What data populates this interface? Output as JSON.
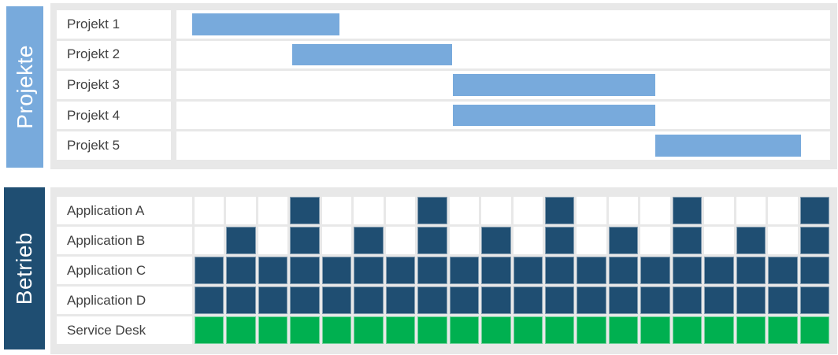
{
  "projects_section": {
    "sidebar_label": "Projekte",
    "rows": [
      {
        "label": "Projekt 1",
        "bar_left_pct": 2.4,
        "bar_width_pct": 22.5
      },
      {
        "label": "Projekt 2",
        "bar_left_pct": 17.7,
        "bar_width_pct": 24.5
      },
      {
        "label": "Projekt 3",
        "bar_left_pct": 42.3,
        "bar_width_pct": 31.0
      },
      {
        "label": "Projekt 4",
        "bar_left_pct": 42.3,
        "bar_width_pct": 31.0
      },
      {
        "label": "Projekt 5",
        "bar_left_pct": 73.3,
        "bar_width_pct": 22.3
      }
    ]
  },
  "operations_section": {
    "sidebar_label": "Betrieb",
    "columns": 20,
    "rows": [
      {
        "label": "Application A",
        "cell_color_key": "navy",
        "cells": [
          0,
          0,
          0,
          1,
          0,
          0,
          0,
          1,
          0,
          0,
          0,
          1,
          0,
          0,
          0,
          1,
          0,
          0,
          0,
          1
        ]
      },
      {
        "label": "Application B",
        "cell_color_key": "navy",
        "cells": [
          0,
          1,
          0,
          1,
          0,
          1,
          0,
          1,
          0,
          1,
          0,
          1,
          0,
          1,
          0,
          1,
          0,
          1,
          0,
          1
        ]
      },
      {
        "label": "Application C",
        "cell_color_key": "navy",
        "cells": [
          1,
          1,
          1,
          1,
          1,
          1,
          1,
          1,
          1,
          1,
          1,
          1,
          1,
          1,
          1,
          1,
          1,
          1,
          1,
          1
        ]
      },
      {
        "label": "Application D",
        "cell_color_key": "navy",
        "cells": [
          1,
          1,
          1,
          1,
          1,
          1,
          1,
          1,
          1,
          1,
          1,
          1,
          1,
          1,
          1,
          1,
          1,
          1,
          1,
          1
        ]
      },
      {
        "label": "Service Desk",
        "cell_color_key": "green",
        "cells": [
          1,
          1,
          1,
          1,
          1,
          1,
          1,
          1,
          1,
          1,
          1,
          1,
          1,
          1,
          1,
          1,
          1,
          1,
          1,
          1
        ]
      }
    ]
  },
  "colors": {
    "light_blue": "#78aadc",
    "navy": "#1f4e72",
    "green": "#00b050",
    "frame_gray": "#e8e8e8",
    "label_text": "#404040"
  }
}
